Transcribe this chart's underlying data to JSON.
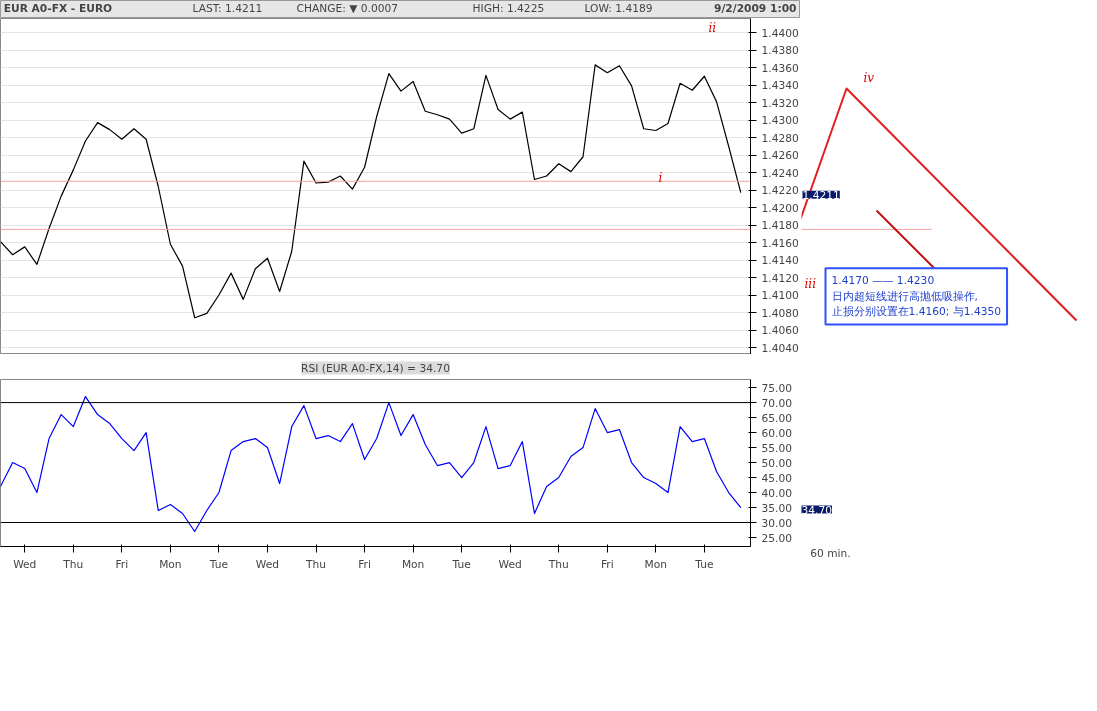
{
  "chart_data": [
    {
      "type": "line",
      "title": "EUR A0-FX - EURO",
      "annotations": [
        "LAST: 1.4211",
        "CHANGE: ▼ 0.0007",
        "HIGH: 1.4225",
        "LOW: 1.4189",
        "9/2/2009 1:00",
        "1.4170 —— 1.4230\n日内超短线进行高抛低吸操作,\n止损分别设置在1.4160; 与1.4350",
        "i",
        "ii",
        "iii",
        "iv",
        "1.4211"
      ],
      "categories": [
        null,
        null,
        null,
        null,
        null,
        null,
        null,
        null,
        null,
        null,
        null,
        null,
        null,
        null,
        null,
        null,
        null,
        null,
        null,
        null,
        null,
        null,
        null,
        null,
        null,
        null,
        null,
        null,
        null,
        null,
        null,
        null,
        null,
        null,
        null,
        null,
        null,
        null,
        null,
        null,
        null,
        null,
        null,
        null,
        null,
        null,
        null,
        null,
        null,
        null,
        null,
        null,
        null,
        null,
        null,
        null,
        null,
        null,
        null,
        null,
        null,
        null
      ],
      "series": [
        {
          "color": "#000000",
          "values": [
            1.4161,
            1.4146,
            1.4155,
            1.4135,
            1.4176,
            1.4213,
            1.4243,
            1.4276,
            1.4297,
            1.4289,
            1.4278,
            1.429,
            1.4278,
            1.4224,
            1.4158,
            1.4133,
            1.4074,
            1.4079,
            1.41,
            1.4125,
            1.4095,
            1.413,
            1.4142,
            1.4104,
            1.415,
            1.4253,
            1.4228,
            1.4229,
            1.4236,
            1.4221,
            1.4246,
            1.4304,
            1.4353,
            1.4333,
            1.4344,
            1.431,
            1.4306,
            1.4301,
            1.4285,
            1.429,
            1.4351,
            1.4312,
            1.4301,
            1.4309,
            1.4232,
            1.4236,
            1.425,
            1.4241,
            1.4258,
            1.4363,
            1.4354,
            1.4362,
            1.4339,
            1.429,
            1.4288,
            1.4296,
            1.4342,
            1.4334,
            1.435,
            1.4321,
            1.427,
            1.4217
          ]
        }
      ],
      "ref_lines": [
        {
          "axis": "y",
          "value": 1.423,
          "color": "#f4a0a0"
        },
        {
          "axis": "y",
          "value": 1.4175,
          "color": "#f4a0a0"
        }
      ],
      "ylim": [
        1.4032,
        1.4416
      ],
      "yticks": [
        {
          "value": 1.404,
          "label": "1.4040"
        },
        {
          "value": 1.406,
          "label": "1.4060"
        },
        {
          "value": 1.408,
          "label": "1.4080"
        },
        {
          "value": 1.41,
          "label": "1.4100"
        },
        {
          "value": 1.412,
          "label": "1.4120"
        },
        {
          "value": 1.414,
          "label": "1.4140"
        },
        {
          "value": 1.416,
          "label": "1.4160"
        },
        {
          "value": 1.418,
          "label": "1.4180"
        },
        {
          "value": 1.42,
          "label": "1.4200"
        },
        {
          "value": 1.422,
          "label": "1.4220"
        },
        {
          "value": 1.424,
          "label": "1.4240"
        },
        {
          "value": 1.426,
          "label": "1.4260"
        },
        {
          "value": 1.428,
          "label": "1.4280"
        },
        {
          "value": 1.43,
          "label": "1.4300"
        },
        {
          "value": 1.432,
          "label": "1.4320"
        },
        {
          "value": 1.434,
          "label": "1.4340"
        },
        {
          "value": 1.436,
          "label": "1.4360"
        },
        {
          "value": 1.438,
          "label": "1.4380"
        },
        {
          "value": 1.44,
          "label": "1.4400"
        }
      ],
      "tick_labels": "y",
      "grid": "y"
    },
    {
      "type": "line",
      "title": "RSI (EUR A0-FX,14) = 34.70",
      "xlabel": "60 min.",
      "annotations": [
        "34.70"
      ],
      "categories": [
        null,
        null,
        "Wed",
        null,
        null,
        null,
        "Thu",
        null,
        null,
        null,
        "Fri",
        null,
        null,
        null,
        "Mon",
        null,
        null,
        null,
        "Tue",
        null,
        null,
        null,
        "Wed",
        null,
        null,
        null,
        "Thu",
        null,
        null,
        null,
        "Fri",
        null,
        null,
        null,
        "Mon",
        null,
        null,
        null,
        "Tue",
        null,
        null,
        null,
        "Wed",
        null,
        null,
        null,
        "Thu",
        null,
        null,
        null,
        "Fri",
        null,
        null,
        null,
        "Mon",
        null,
        null,
        null,
        "Tue",
        null,
        null,
        null
      ],
      "series": [
        {
          "color": "#0000ff",
          "values": [
            42,
            50,
            48,
            40,
            58,
            66,
            62,
            72,
            66,
            63,
            58,
            54,
            60,
            34,
            36,
            33,
            27,
            34,
            40,
            54,
            57,
            58,
            55,
            43,
            62,
            69,
            58,
            59,
            57,
            63,
            51,
            58,
            70,
            59,
            66,
            56,
            49,
            50,
            45,
            50,
            62,
            48,
            49,
            57,
            33,
            42,
            45,
            52,
            55,
            68,
            60,
            61,
            50,
            45,
            43,
            40,
            62,
            57,
            58,
            47,
            40,
            35
          ]
        }
      ],
      "ref_lines": [
        {
          "axis": "y",
          "value": 70,
          "color": "#000000"
        },
        {
          "axis": "y",
          "value": 30,
          "color": "#000000"
        }
      ],
      "ylim": [
        22,
        77.7
      ],
      "yticks": [
        {
          "value": 25,
          "label": "25.00"
        },
        {
          "value": 30,
          "label": "30.00"
        },
        {
          "value": 35,
          "label": "35.00"
        },
        {
          "value": 40,
          "label": "40.00"
        },
        {
          "value": 45,
          "label": "45.00"
        },
        {
          "value": 50,
          "label": "50.00"
        },
        {
          "value": 55,
          "label": "55.00"
        },
        {
          "value": 60,
          "label": "60.00"
        },
        {
          "value": 65,
          "label": "65.00"
        },
        {
          "value": 70,
          "label": "70.00"
        },
        {
          "value": 75,
          "label": "75.00"
        }
      ]
    }
  ]
}
